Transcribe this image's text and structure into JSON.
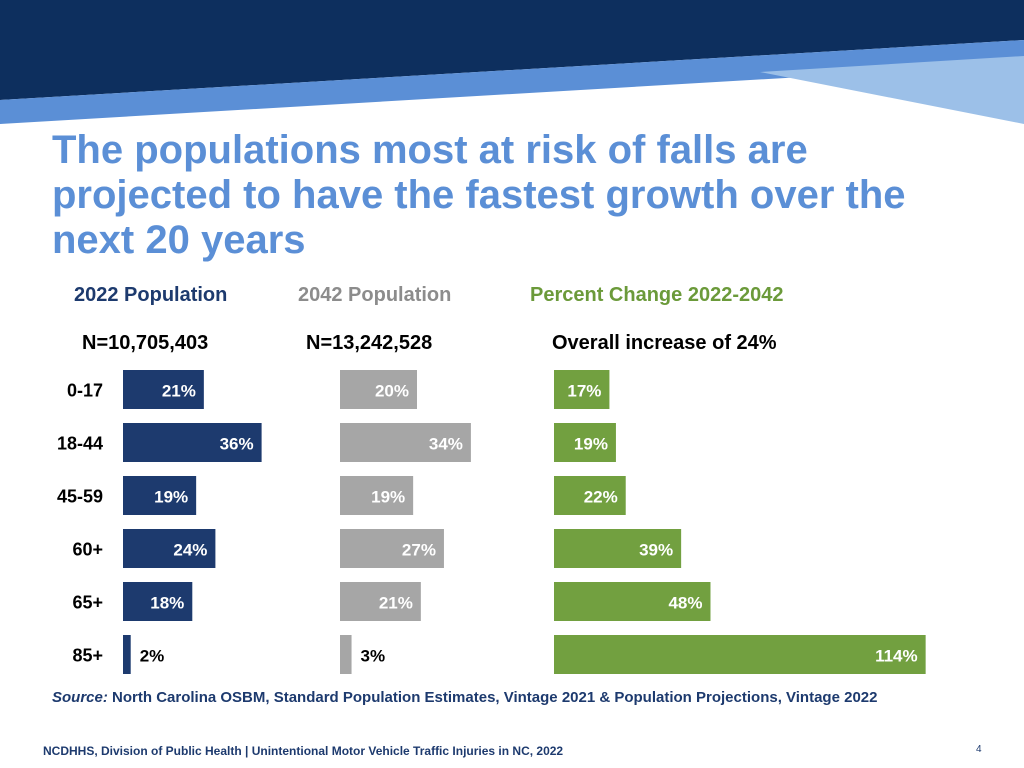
{
  "slide": {
    "title": "The populations most at risk of falls are projected to have the fastest growth over the next 20 years",
    "source_label": "Source:",
    "source_text": "North Carolina OSBM, Standard Population Estimates, Vintage 2021 & Population Projections, Vintage 2022",
    "footer": "NCDHHS, Division of Public Health | Unintentional Motor Vehicle Traffic Injuries in NC, 2022",
    "page_number": "4"
  },
  "columns": [
    {
      "heading": "2022 Population",
      "subheading": "N=10,705,403",
      "color": "#1d3a6e"
    },
    {
      "heading": "2042 Population",
      "subheading": "N=13,242,528",
      "color": "#8c8c8c"
    },
    {
      "heading": "Percent Change 2022-2042",
      "subheading": "Overall increase of 24%",
      "color": "#6b9a3a"
    }
  ],
  "chart_data": {
    "type": "bar",
    "orientation": "horizontal",
    "categories": [
      "0-17",
      "18-44",
      "45-59",
      "60+",
      "65+",
      "85+"
    ],
    "series": [
      {
        "name": "2022 Population",
        "values": [
          21,
          36,
          19,
          24,
          18,
          2
        ],
        "labels": [
          "21%",
          "36%",
          "19%",
          "24%",
          "18%",
          "2%"
        ],
        "color": "#1d3a6e"
      },
      {
        "name": "2042 Population",
        "values": [
          20,
          34,
          19,
          27,
          21,
          3
        ],
        "labels": [
          "20%",
          "34%",
          "19%",
          "27%",
          "21%",
          "3%"
        ],
        "color": "#a6a6a6"
      },
      {
        "name": "Percent Change 2022-2042",
        "values": [
          17,
          19,
          22,
          39,
          48,
          114
        ],
        "labels": [
          "17%",
          "19%",
          "22%",
          "39%",
          "48%",
          "114%"
        ],
        "color": "#72a040"
      }
    ]
  },
  "colors": {
    "banner_dark": "#0d2f5e",
    "banner_mid": "#5b8fd6",
    "banner_light": "#9cc0e8",
    "title": "#5b8fd6"
  }
}
